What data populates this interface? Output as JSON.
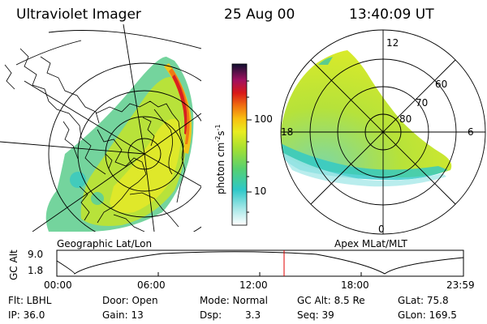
{
  "header": {
    "title": "Ultraviolet Imager",
    "date": "25 Aug 00",
    "time": "13:40:09 UT"
  },
  "colorbar": {
    "unit": "photon cm",
    "unit_sup1": "-2",
    "unit_mid": "s",
    "unit_sup2": "-1",
    "ticks": [
      "100",
      "10"
    ]
  },
  "left_panel": {
    "label": "Geographic Lat/Lon"
  },
  "right_panel": {
    "label": "Apex MLat/MLT",
    "mlt_labels": [
      "12",
      "18",
      "6",
      "0"
    ],
    "lat_labels": [
      "60",
      "70",
      "80"
    ]
  },
  "altitude_plot": {
    "ylabel": "GC Alt",
    "yticks": [
      "9.0",
      "1.8"
    ],
    "xticks": [
      "00:00",
      "06:00",
      "12:00",
      "18:00",
      "23:59"
    ],
    "marker_color": "#e00000"
  },
  "info": {
    "flt": "Flt: LBHL",
    "ip": "IP: 36.0",
    "door": "Door: Open",
    "gain": "Gain: 13",
    "mode": "Mode: Normal",
    "dsp_label": "Dsp:",
    "dsp_value": "3.3",
    "gc_alt": "GC Alt: 8.5 Re",
    "seq": "Seq: 39",
    "glat": "GLat: 75.8",
    "glon": "GLon: 169.5"
  }
}
